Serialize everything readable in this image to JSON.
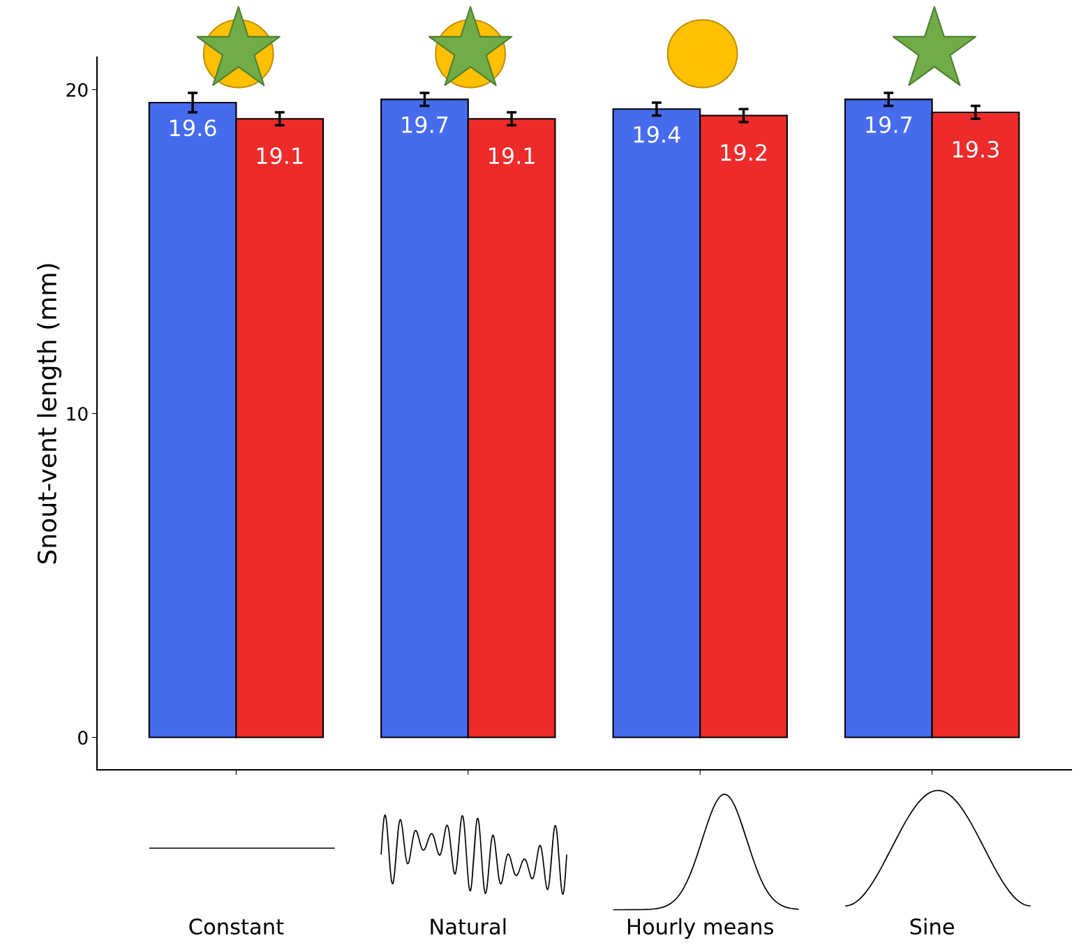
{
  "chart_data": {
    "type": "bar",
    "ylabel": "Snout-vent length (mm)",
    "categories": [
      "Constant",
      "Natural",
      "Hourly means",
      "Sine"
    ],
    "series": [
      {
        "color": "#466ced",
        "values": [
          19.6,
          19.7,
          19.4,
          19.7
        ],
        "errors": [
          0.3,
          0.2,
          0.2,
          0.2
        ]
      },
      {
        "color": "#ed2b2b",
        "values": [
          19.1,
          19.1,
          19.2,
          19.3
        ],
        "errors": [
          0.2,
          0.2,
          0.2,
          0.2
        ]
      }
    ],
    "data_labels": true,
    "ylim": [
      -1,
      21
    ],
    "yticks": [
      0,
      10,
      20
    ],
    "grid": false,
    "legend": false
  }
}
